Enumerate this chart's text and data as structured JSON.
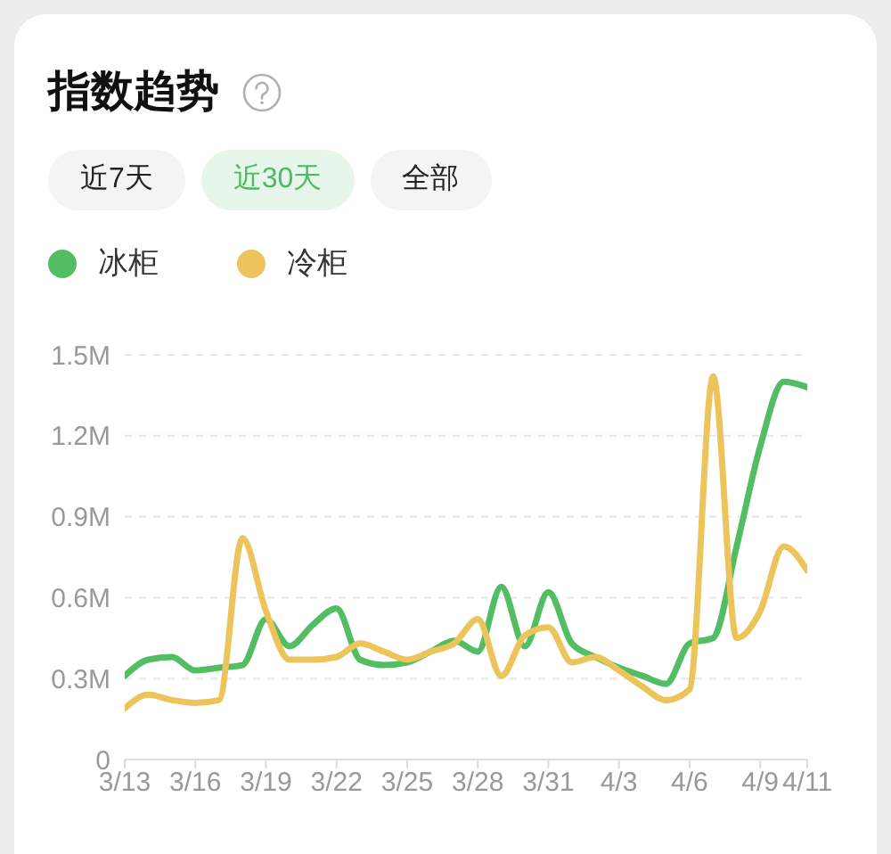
{
  "chart_data": {
    "type": "line",
    "title": "指数趋势",
    "annotations": [
      "近7天",
      "近30天",
      "全部"
    ],
    "categories": [
      "3/13",
      null,
      null,
      "3/16",
      null,
      null,
      "3/19",
      null,
      null,
      "3/22",
      null,
      null,
      "3/25",
      null,
      null,
      "3/28",
      null,
      null,
      "3/31",
      null,
      null,
      "4/3",
      null,
      null,
      "4/6",
      null,
      null,
      "4/9",
      null,
      "4/11"
    ],
    "series": [
      {
        "name": "冰柜",
        "color": "#52bd63",
        "values": [
          0.31,
          0.37,
          0.38,
          0.33,
          0.34,
          0.35,
          0.52,
          0.42,
          0.5,
          0.56,
          0.37,
          0.35,
          0.36,
          0.4,
          0.44,
          0.4,
          0.64,
          0.42,
          0.62,
          0.43,
          0.38,
          0.34,
          0.31,
          0.28,
          0.43,
          0.45,
          0.79,
          1.16,
          1.4,
          1.38
        ]
      },
      {
        "name": "冷柜",
        "color": "#ecc45b",
        "values": [
          0.19,
          0.24,
          0.22,
          0.21,
          0.22,
          0.82,
          0.55,
          0.37,
          0.37,
          0.38,
          0.43,
          0.4,
          0.37,
          0.4,
          0.43,
          0.52,
          0.31,
          0.46,
          0.49,
          0.36,
          0.38,
          0.33,
          0.27,
          0.22,
          0.26,
          1.42,
          0.45,
          0.55,
          0.79,
          0.7
        ]
      }
    ],
    "ylim": [
      0,
      1.5
    ],
    "yticks": [
      0,
      {
        "value": 0.3,
        "label": "0.3M"
      },
      {
        "value": 0.6,
        "label": "0.6M"
      },
      {
        "value": 0.9,
        "label": "0.9M"
      },
      {
        "value": 1.2,
        "label": "1.2M"
      },
      {
        "value": 1.5,
        "label": "1.5M"
      }
    ],
    "grid": "y",
    "legend": "top left"
  }
}
